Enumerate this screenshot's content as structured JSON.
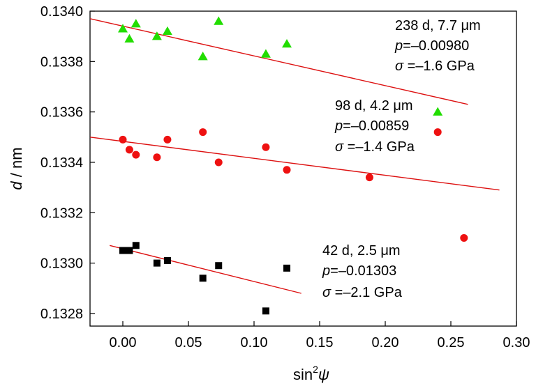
{
  "chart_data": {
    "type": "scatter",
    "xlabel": {
      "base": "sin",
      "sup": "2",
      "var": "ψ"
    },
    "ylabel": {
      "var": "d",
      "rest": " / nm"
    },
    "xlim": [
      -0.025,
      0.3
    ],
    "ylim": [
      0.13275,
      0.134
    ],
    "x_ticks": [
      0.0,
      0.05,
      0.1,
      0.15,
      0.2,
      0.25,
      0.3
    ],
    "x_tick_labels": [
      "0.00",
      "0.05",
      "0.10",
      "0.15",
      "0.20",
      "0.25",
      "0.30"
    ],
    "y_ticks": [
      0.1328,
      0.133,
      0.1332,
      0.1334,
      0.1336,
      0.1338,
      0.134
    ],
    "y_tick_labels": [
      "0.1328",
      "0.1330",
      "0.1332",
      "0.1334",
      "0.1336",
      "0.1338",
      "0.1340"
    ],
    "series": [
      {
        "marker": "triangle",
        "color": "#22dd00",
        "points": [
          [
            0.0,
            0.13393
          ],
          [
            0.005,
            0.13389
          ],
          [
            0.01,
            0.13395
          ],
          [
            0.026,
            0.1339
          ],
          [
            0.034,
            0.13392
          ],
          [
            0.061,
            0.13382
          ],
          [
            0.073,
            0.13396
          ],
          [
            0.109,
            0.13383
          ],
          [
            0.125,
            0.13387
          ],
          [
            0.24,
            0.1336
          ]
        ],
        "fit": {
          "x": [
            -0.025,
            0.263
          ],
          "y": [
            0.13397,
            0.13363
          ]
        },
        "annotation": {
          "line1": "238 d, 7.7 μm",
          "p_value": "–0.00980",
          "sigma_value": "–1.6 GPa"
        }
      },
      {
        "marker": "circle",
        "color": "#ee1111",
        "points": [
          [
            0.0,
            0.13349
          ],
          [
            0.005,
            0.13345
          ],
          [
            0.01,
            0.13343
          ],
          [
            0.026,
            0.13342
          ],
          [
            0.034,
            0.13349
          ],
          [
            0.061,
            0.13352
          ],
          [
            0.073,
            0.1334
          ],
          [
            0.109,
            0.13346
          ],
          [
            0.125,
            0.13337
          ],
          [
            0.188,
            0.13334
          ],
          [
            0.24,
            0.13352
          ],
          [
            0.26,
            0.1331
          ]
        ],
        "fit": {
          "x": [
            -0.025,
            0.287
          ],
          "y": [
            0.1335,
            0.13329
          ]
        },
        "annotation": {
          "line1": "98 d, 4.2 μm",
          "p_value": "–0.00859",
          "sigma_value": "–1.4 GPa"
        }
      },
      {
        "marker": "square",
        "color": "#000000",
        "points": [
          [
            0.0,
            0.13305
          ],
          [
            0.005,
            0.13305
          ],
          [
            0.01,
            0.13307
          ],
          [
            0.026,
            0.133
          ],
          [
            0.034,
            0.13301
          ],
          [
            0.061,
            0.13294
          ],
          [
            0.073,
            0.13299
          ],
          [
            0.109,
            0.13281
          ],
          [
            0.125,
            0.13298
          ]
        ],
        "fit": {
          "x": [
            -0.01,
            0.136
          ],
          "y": [
            0.13307,
            0.13288
          ]
        },
        "annotation": {
          "line1": "42 d, 2.5 μm",
          "p_value": "–0.01303",
          "sigma_value": "–2.1 GPa"
        }
      }
    ],
    "fit_line_color": "#dd1111",
    "grid": false,
    "legend": "none"
  }
}
